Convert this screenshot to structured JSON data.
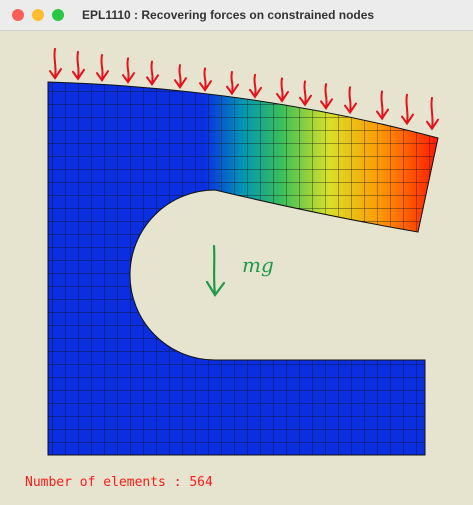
{
  "window": {
    "title": "EPL1110 : Recovering forces on constrained nodes"
  },
  "annotation": {
    "label": "mg"
  },
  "status": {
    "text": "Number of elements : 564"
  }
}
